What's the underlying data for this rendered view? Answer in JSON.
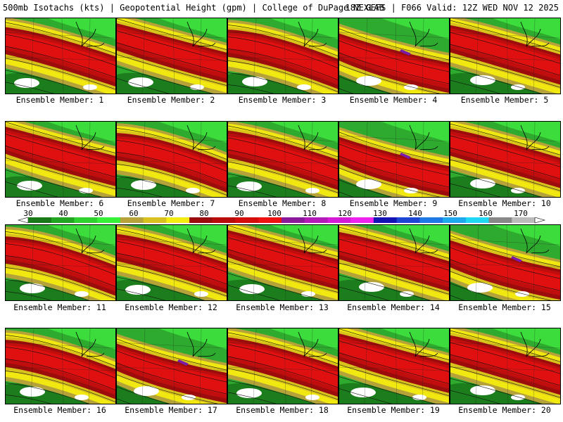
{
  "header": {
    "left_title": "500mb Isotachs (kts) | Geopotential Height (gpm) | College of DuPage NEXLAB",
    "right_title": "18Z GEFS | F066 Valid: 12Z WED NOV 12 2025"
  },
  "legend": {
    "labels": [
      "30",
      "40",
      "50",
      "60",
      "70",
      "80",
      "90",
      "100",
      "110",
      "120",
      "130",
      "140",
      "150",
      "160",
      "170"
    ],
    "colors": [
      "#1a7a1a",
      "#22a622",
      "#2ed12e",
      "#38f038",
      "#b8a23a",
      "#d8c020",
      "#f4ec10",
      "#9c0c0c",
      "#b80c0c",
      "#d40c0c",
      "#ee1212",
      "#8a1a9a",
      "#b41ab8",
      "#d41ad6",
      "#ee22ee",
      "#1414b4",
      "#1e46d2",
      "#1e78e6",
      "#20a8ee",
      "#20d8f4",
      "#888888",
      "#bbbbbb"
    ]
  },
  "panels": [
    {
      "label": "Ensemble Member: 1",
      "variant": 0
    },
    {
      "label": "Ensemble Member: 2",
      "variant": 1
    },
    {
      "label": "Ensemble Member: 3",
      "variant": 2
    },
    {
      "label": "Ensemble Member: 4",
      "variant": 3
    },
    {
      "label": "Ensemble Member: 5",
      "variant": 4
    },
    {
      "label": "Ensemble Member: 6",
      "variant": 1
    },
    {
      "label": "Ensemble Member: 7",
      "variant": 2
    },
    {
      "label": "Ensemble Member: 8",
      "variant": 0
    },
    {
      "label": "Ensemble Member: 9",
      "variant": 3
    },
    {
      "label": "Ensemble Member: 10",
      "variant": 4
    },
    {
      "label": "Ensemble Member: 11",
      "variant": 2
    },
    {
      "label": "Ensemble Member: 12",
      "variant": 0
    },
    {
      "label": "Ensemble Member: 13",
      "variant": 1
    },
    {
      "label": "Ensemble Member: 14",
      "variant": 4
    },
    {
      "label": "Ensemble Member: 15",
      "variant": 3
    },
    {
      "label": "Ensemble Member: 16",
      "variant": 2
    },
    {
      "label": "Ensemble Member: 17",
      "variant": 3
    },
    {
      "label": "Ensemble Member: 18",
      "variant": 0
    },
    {
      "label": "Ensemble Member: 19",
      "variant": 1
    },
    {
      "label": "Ensemble Member: 20",
      "variant": 4
    }
  ]
}
